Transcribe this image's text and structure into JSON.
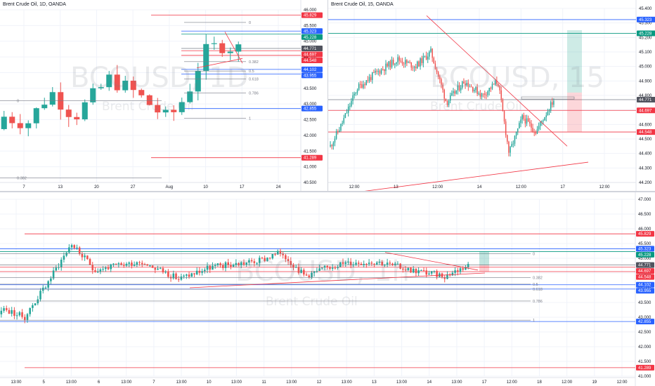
{
  "colors": {
    "up": "#26a69a",
    "down": "#ef5350",
    "red_line": "#f23645",
    "blue_line": "#2962ff",
    "green_badge": "#089981",
    "grey_badge": "#50535e",
    "watermark": "#d1d4dc",
    "grid": "#f0f3fa"
  },
  "panes": [
    {
      "id": "daily",
      "title": "Brent Crude Oil, 1D, OANDA",
      "watermark": "BCOUSD, 1D",
      "watermark_sub": "Brent Crude Oil",
      "y_ticks": [
        "46.000",
        "45.500",
        "45.000",
        "44.500",
        "44.000",
        "43.500",
        "43.000",
        "42.500",
        "42.000",
        "41.500",
        "41.000",
        "40.500"
      ],
      "x_ticks": [
        "7",
        "13",
        "20",
        "27",
        "Aug",
        "10",
        "17",
        "24"
      ],
      "badges": [
        {
          "text": "45.829",
          "color": "red"
        },
        {
          "text": "45.323",
          "color": "blue"
        },
        {
          "text": "45.228",
          "color": "green"
        },
        {
          "text": "44.771",
          "color": "grey"
        },
        {
          "text": "44.697",
          "color": "red"
        },
        {
          "text": "44.548",
          "color": "red"
        },
        {
          "text": "44.102",
          "color": "blue"
        },
        {
          "text": "43.955",
          "color": "blue"
        },
        {
          "text": "42.855",
          "color": "blue"
        },
        {
          "text": "41.289",
          "color": "red"
        }
      ],
      "fib_labels": [
        "0",
        "0.382",
        "0.5",
        "0.618",
        "0.786",
        "1"
      ],
      "left_labels": [
        "0",
        "0.382"
      ]
    },
    {
      "id": "m15",
      "title": "Brent Crude Oil, 15, OANDA",
      "watermark": "BCOUSD, 15",
      "watermark_sub": "Brent Crude Oil",
      "y_ticks": [
        "45.400",
        "45.300",
        "45.200",
        "45.100",
        "45.000",
        "44.900",
        "44.800",
        "44.700",
        "44.600",
        "44.500",
        "44.400",
        "44.300",
        "44.200"
      ],
      "x_ticks": [
        "12:00",
        "13",
        "12:00",
        "14",
        "12:00",
        "17",
        "12:00"
      ],
      "badges": [
        {
          "text": "45.323",
          "color": "blue"
        },
        {
          "text": "45.228",
          "color": "green"
        },
        {
          "text": "44.771",
          "color": "grey"
        },
        {
          "text": "44.697",
          "color": "red"
        },
        {
          "text": "44.548",
          "color": "red"
        }
      ]
    },
    {
      "id": "h1",
      "title": "",
      "watermark": "BCOUSD, 1h",
      "watermark_sub": "Brent Crude Oil",
      "y_ticks": [
        "47.000",
        "46.500",
        "46.000",
        "45.500",
        "45.000",
        "44.500",
        "44.000",
        "43.500",
        "43.000",
        "42.500",
        "42.000",
        "41.500",
        "41.000"
      ],
      "x_ticks": [
        "13:00",
        "5",
        "13:00",
        "6",
        "13:00",
        "7",
        "13:00",
        "10",
        "13:00",
        "11",
        "13:00",
        "12",
        "13:00",
        "13",
        "13:00",
        "14",
        "13:00",
        "17",
        "12:00",
        "18",
        "12:00",
        "19",
        "12:00"
      ],
      "badges": [
        {
          "text": "45.829",
          "color": "red"
        },
        {
          "text": "45.323",
          "color": "blue"
        },
        {
          "text": "45.228",
          "color": "green"
        },
        {
          "text": "44.771",
          "color": "grey"
        },
        {
          "text": "44.697",
          "color": "red"
        },
        {
          "text": "44.548",
          "color": "red"
        },
        {
          "text": "44.102",
          "color": "blue"
        },
        {
          "text": "43.955",
          "color": "blue"
        },
        {
          "text": "42.855",
          "color": "blue"
        },
        {
          "text": "41.289",
          "color": "red"
        }
      ],
      "fib_labels": [
        "0",
        "0.382",
        "0.5",
        "0.618",
        "0.786",
        "1"
      ]
    }
  ],
  "chart_data": [
    {
      "type": "candlestick",
      "title": "Brent Crude Oil, 1D, OANDA",
      "ylim": [
        40.5,
        46.0
      ],
      "levels": {
        "red": [
          45.829,
          44.697,
          44.548,
          41.289
        ],
        "blue": [
          45.323,
          44.102,
          43.955,
          42.855
        ],
        "green": [
          45.228
        ],
        "grey": [
          44.771
        ]
      },
      "fib_levels": [
        0,
        0.382,
        0.5,
        0.618,
        0.786,
        1
      ],
      "last_close": 44.771
    },
    {
      "type": "candlestick",
      "title": "Brent Crude Oil, 15, OANDA",
      "ylim": [
        44.2,
        45.4
      ],
      "levels": {
        "blue": [
          45.323
        ],
        "green": [
          45.228
        ],
        "grey": [
          44.771
        ],
        "red": [
          44.697,
          44.548
        ]
      },
      "last_close": 44.771
    },
    {
      "type": "candlestick",
      "title": "",
      "ylim": [
        41.0,
        47.0
      ],
      "levels": {
        "red": [
          45.829,
          44.697,
          44.548,
          41.289
        ],
        "blue": [
          45.323,
          44.102,
          43.955,
          42.855
        ],
        "green": [
          45.228
        ],
        "grey": [
          44.771
        ]
      },
      "fib_levels": [
        0,
        0.382,
        0.5,
        0.618,
        0.786,
        1
      ],
      "last_close": 44.771
    }
  ]
}
